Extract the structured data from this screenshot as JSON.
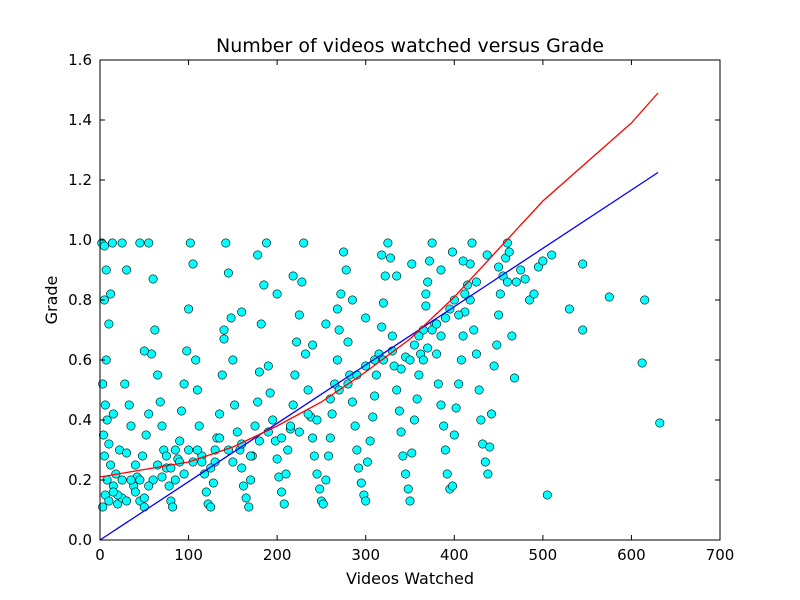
{
  "chart_data": {
    "type": "scatter",
    "title": "Number of videos watched versus Grade",
    "xlabel": "Videos Watched",
    "ylabel": "Grade",
    "xlim": [
      0,
      700
    ],
    "ylim": [
      0,
      1.6
    ],
    "xticks": [
      "0",
      "100",
      "200",
      "300",
      "400",
      "500",
      "600",
      "700"
    ],
    "yticks": [
      "0.0",
      "0.2",
      "0.4",
      "0.6",
      "0.8",
      "1.0",
      "1.2",
      "1.4",
      "1.6"
    ],
    "grid": false,
    "colors": {
      "points": "#00ffff",
      "point_edge": "#000000",
      "linear_fit": "#0000ff",
      "curve_fit": "#ff0000"
    },
    "series": [
      {
        "kind": "points",
        "points": [
          [
            2,
            0.99
          ],
          [
            5,
            0.98
          ],
          [
            7,
            0.6
          ],
          [
            3,
            0.52
          ],
          [
            6,
            0.45
          ],
          [
            8,
            0.4
          ],
          [
            4,
            0.35
          ],
          [
            10,
            0.32
          ],
          [
            5,
            0.28
          ],
          [
            12,
            0.25
          ],
          [
            8,
            0.2
          ],
          [
            15,
            0.18
          ],
          [
            6,
            0.15
          ],
          [
            20,
            0.12
          ],
          [
            3,
            0.11
          ],
          [
            25,
            0.14
          ],
          [
            18,
            0.22
          ],
          [
            22,
            0.3
          ],
          [
            15,
            0.42
          ],
          [
            10,
            0.72
          ],
          [
            7,
            0.9
          ],
          [
            5,
            0.8
          ],
          [
            12,
            0.82
          ],
          [
            14,
            0.99
          ],
          [
            25,
            0.99
          ],
          [
            30,
            0.9
          ],
          [
            28,
            0.52
          ],
          [
            33,
            0.45
          ],
          [
            35,
            0.38
          ],
          [
            30,
            0.29
          ],
          [
            40,
            0.25
          ],
          [
            38,
            0.18
          ],
          [
            45,
            0.13
          ],
          [
            50,
            0.11
          ],
          [
            42,
            0.21
          ],
          [
            48,
            0.28
          ],
          [
            52,
            0.35
          ],
          [
            55,
            0.42
          ],
          [
            58,
            0.62
          ],
          [
            50,
            0.63
          ],
          [
            45,
            0.99
          ],
          [
            55,
            0.99
          ],
          [
            60,
            0.87
          ],
          [
            62,
            0.7
          ],
          [
            65,
            0.55
          ],
          [
            68,
            0.46
          ],
          [
            70,
            0.38
          ],
          [
            72,
            0.3
          ],
          [
            75,
            0.24
          ],
          [
            78,
            0.18
          ],
          [
            80,
            0.13
          ],
          [
            82,
            0.11
          ],
          [
            85,
            0.2
          ],
          [
            88,
            0.27
          ],
          [
            90,
            0.33
          ],
          [
            92,
            0.43
          ],
          [
            95,
            0.52
          ],
          [
            98,
            0.63
          ],
          [
            100,
            0.77
          ],
          [
            102,
            0.99
          ],
          [
            105,
            0.92
          ],
          [
            108,
            0.6
          ],
          [
            110,
            0.5
          ],
          [
            112,
            0.38
          ],
          [
            115,
            0.28
          ],
          [
            118,
            0.22
          ],
          [
            120,
            0.16
          ],
          [
            122,
            0.12
          ],
          [
            125,
            0.11
          ],
          [
            128,
            0.19
          ],
          [
            130,
            0.26
          ],
          [
            132,
            0.34
          ],
          [
            135,
            0.42
          ],
          [
            138,
            0.55
          ],
          [
            140,
            0.67
          ],
          [
            142,
            0.99
          ],
          [
            145,
            0.89
          ],
          [
            148,
            0.74
          ],
          [
            150,
            0.6
          ],
          [
            152,
            0.45
          ],
          [
            155,
            0.36
          ],
          [
            158,
            0.3
          ],
          [
            160,
            0.24
          ],
          [
            162,
            0.18
          ],
          [
            165,
            0.14
          ],
          [
            168,
            0.11
          ],
          [
            170,
            0.2
          ],
          [
            172,
            0.28
          ],
          [
            175,
            0.38
          ],
          [
            178,
            0.46
          ],
          [
            180,
            0.56
          ],
          [
            182,
            0.72
          ],
          [
            185,
            0.85
          ],
          [
            188,
            0.99
          ],
          [
            190,
            0.58
          ],
          [
            192,
            0.49
          ],
          [
            195,
            0.4
          ],
          [
            198,
            0.33
          ],
          [
            200,
            0.27
          ],
          [
            202,
            0.21
          ],
          [
            205,
            0.16
          ],
          [
            208,
            0.12
          ],
          [
            210,
            0.22
          ],
          [
            212,
            0.3
          ],
          [
            215,
            0.37
          ],
          [
            218,
            0.45
          ],
          [
            220,
            0.55
          ],
          [
            222,
            0.66
          ],
          [
            225,
            0.75
          ],
          [
            228,
            0.86
          ],
          [
            230,
            0.99
          ],
          [
            232,
            0.62
          ],
          [
            235,
            0.5
          ],
          [
            238,
            0.41
          ],
          [
            240,
            0.34
          ],
          [
            242,
            0.28
          ],
          [
            245,
            0.22
          ],
          [
            248,
            0.17
          ],
          [
            250,
            0.13
          ],
          [
            252,
            0.12
          ],
          [
            255,
            0.2
          ],
          [
            258,
            0.28
          ],
          [
            260,
            0.34
          ],
          [
            262,
            0.42
          ],
          [
            265,
            0.52
          ],
          [
            268,
            0.6
          ],
          [
            270,
            0.7
          ],
          [
            272,
            0.82
          ],
          [
            275,
            0.96
          ],
          [
            278,
            0.9
          ],
          [
            280,
            0.66
          ],
          [
            282,
            0.55
          ],
          [
            285,
            0.46
          ],
          [
            288,
            0.38
          ],
          [
            290,
            0.3
          ],
          [
            292,
            0.24
          ],
          [
            295,
            0.19
          ],
          [
            298,
            0.15
          ],
          [
            300,
            0.13
          ],
          [
            302,
            0.26
          ],
          [
            305,
            0.33
          ],
          [
            308,
            0.41
          ],
          [
            310,
            0.48
          ],
          [
            312,
            0.55
          ],
          [
            315,
            0.62
          ],
          [
            318,
            0.71
          ],
          [
            320,
            0.79
          ],
          [
            322,
            0.88
          ],
          [
            325,
            0.99
          ],
          [
            328,
            0.94
          ],
          [
            330,
            0.68
          ],
          [
            332,
            0.58
          ],
          [
            335,
            0.5
          ],
          [
            338,
            0.43
          ],
          [
            340,
            0.36
          ],
          [
            342,
            0.28
          ],
          [
            345,
            0.22
          ],
          [
            348,
            0.17
          ],
          [
            350,
            0.13
          ],
          [
            352,
            0.29
          ],
          [
            355,
            0.4
          ],
          [
            358,
            0.47
          ],
          [
            360,
            0.55
          ],
          [
            362,
            0.62
          ],
          [
            365,
            0.7
          ],
          [
            368,
            0.78
          ],
          [
            370,
            0.86
          ],
          [
            372,
            0.93
          ],
          [
            375,
            0.99
          ],
          [
            378,
            0.72
          ],
          [
            380,
            0.62
          ],
          [
            382,
            0.52
          ],
          [
            385,
            0.45
          ],
          [
            388,
            0.38
          ],
          [
            390,
            0.3
          ],
          [
            392,
            0.22
          ],
          [
            395,
            0.17
          ],
          [
            398,
            0.18
          ],
          [
            400,
            0.35
          ],
          [
            402,
            0.44
          ],
          [
            405,
            0.52
          ],
          [
            408,
            0.6
          ],
          [
            410,
            0.68
          ],
          [
            412,
            0.76
          ],
          [
            415,
            0.85
          ],
          [
            418,
            0.92
          ],
          [
            420,
            0.99
          ],
          [
            422,
            0.7
          ],
          [
            425,
            0.62
          ],
          [
            428,
            0.5
          ],
          [
            430,
            0.4
          ],
          [
            432,
            0.32
          ],
          [
            435,
            0.26
          ],
          [
            438,
            0.22
          ],
          [
            440,
            0.31
          ],
          [
            442,
            0.42
          ],
          [
            445,
            0.58
          ],
          [
            448,
            0.65
          ],
          [
            450,
            0.75
          ],
          [
            452,
            0.82
          ],
          [
            455,
            0.88
          ],
          [
            458,
            0.94
          ],
          [
            460,
            0.99
          ],
          [
            462,
            0.96
          ],
          [
            465,
            0.68
          ],
          [
            468,
            0.54
          ],
          [
            470,
            0.86
          ],
          [
            475,
            0.9
          ],
          [
            480,
            0.87
          ],
          [
            485,
            0.8
          ],
          [
            490,
            0.82
          ],
          [
            495,
            0.91
          ],
          [
            500,
            0.93
          ],
          [
            505,
            0.15
          ],
          [
            510,
            0.95
          ],
          [
            530,
            0.77
          ],
          [
            545,
            0.7
          ],
          [
            545,
            0.92
          ],
          [
            575,
            0.81
          ],
          [
            612,
            0.59
          ],
          [
            615,
            0.8
          ],
          [
            632,
            0.39
          ],
          [
            140,
            0.7
          ],
          [
            160,
            0.76
          ],
          [
            178,
            0.95
          ],
          [
            200,
            0.82
          ],
          [
            218,
            0.88
          ],
          [
            240,
            0.65
          ],
          [
            255,
            0.72
          ],
          [
            268,
            0.77
          ],
          [
            285,
            0.8
          ],
          [
            300,
            0.74
          ],
          [
            318,
            0.95
          ],
          [
            335,
            0.88
          ],
          [
            352,
            0.92
          ],
          [
            368,
            0.82
          ],
          [
            385,
            0.9
          ],
          [
            398,
            0.96
          ],
          [
            410,
            0.93
          ],
          [
            425,
            0.86
          ],
          [
            437,
            0.95
          ],
          [
            450,
            0.91
          ],
          [
            460,
            0.86
          ],
          [
            320,
            0.6
          ],
          [
            330,
            0.63
          ],
          [
            340,
            0.57
          ],
          [
            345,
            0.61
          ],
          [
            350,
            0.6
          ],
          [
            355,
            0.65
          ],
          [
            360,
            0.68
          ],
          [
            365,
            0.6
          ],
          [
            370,
            0.64
          ],
          [
            375,
            0.7
          ],
          [
            380,
            0.72
          ],
          [
            385,
            0.68
          ],
          [
            390,
            0.74
          ],
          [
            395,
            0.77
          ],
          [
            400,
            0.8
          ],
          [
            405,
            0.75
          ],
          [
            412,
            0.82
          ],
          [
            418,
            0.8
          ],
          [
            260,
            0.47
          ],
          [
            270,
            0.5
          ],
          [
            280,
            0.52
          ],
          [
            290,
            0.55
          ],
          [
            300,
            0.58
          ],
          [
            310,
            0.6
          ],
          [
            110,
            0.3
          ],
          [
            115,
            0.26
          ],
          [
            125,
            0.24
          ],
          [
            130,
            0.3
          ],
          [
            135,
            0.34
          ],
          [
            145,
            0.3
          ],
          [
            150,
            0.26
          ],
          [
            160,
            0.32
          ],
          [
            170,
            0.28
          ],
          [
            180,
            0.33
          ],
          [
            190,
            0.36
          ],
          [
            205,
            0.34
          ],
          [
            215,
            0.38
          ],
          [
            225,
            0.36
          ],
          [
            235,
            0.42
          ],
          [
            245,
            0.4
          ],
          [
            60,
            0.2
          ],
          [
            65,
            0.25
          ],
          [
            70,
            0.21
          ],
          [
            75,
            0.28
          ],
          [
            80,
            0.24
          ],
          [
            85,
            0.3
          ],
          [
            90,
            0.26
          ],
          [
            95,
            0.22
          ],
          [
            100,
            0.3
          ],
          [
            105,
            0.26
          ],
          [
            40,
            0.16
          ],
          [
            45,
            0.2
          ],
          [
            50,
            0.14
          ],
          [
            55,
            0.18
          ],
          [
            30,
            0.13
          ],
          [
            35,
            0.2
          ],
          [
            20,
            0.15
          ],
          [
            25,
            0.2
          ],
          [
            10,
            0.13
          ],
          [
            15,
            0.16
          ]
        ]
      },
      {
        "kind": "line",
        "points": [
          [
            0,
            0
          ],
          [
            630,
            1.225
          ]
        ]
      },
      {
        "kind": "line",
        "points": [
          [
            0,
            0.21
          ],
          [
            50,
            0.235
          ],
          [
            100,
            0.26
          ],
          [
            150,
            0.31
          ],
          [
            200,
            0.38
          ],
          [
            250,
            0.46
          ],
          [
            300,
            0.56
          ],
          [
            350,
            0.67
          ],
          [
            400,
            0.81
          ],
          [
            450,
            0.97
          ],
          [
            500,
            1.13
          ],
          [
            550,
            1.26
          ],
          [
            600,
            1.39
          ],
          [
            630,
            1.49
          ]
        ]
      }
    ]
  }
}
